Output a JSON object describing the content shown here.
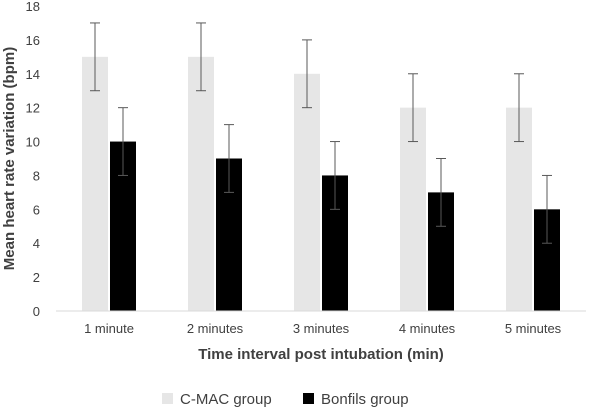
{
  "chart_data": {
    "type": "bar",
    "xlabel": "Time interval post intubation (min)",
    "ylabel": "Mean heart rate  variation (bpm)",
    "ylim": [
      0,
      18
    ],
    "yticks": [
      0,
      2,
      4,
      6,
      8,
      10,
      12,
      14,
      16,
      18
    ],
    "categories": [
      "1 minute",
      "2 minutes",
      "3 minutes",
      "4 minutes",
      "5 minutes"
    ],
    "series": [
      {
        "name": "C-MAC group",
        "values": [
          15,
          15,
          14,
          12,
          12
        ],
        "error": [
          2,
          2,
          2,
          2,
          2
        ],
        "color": "#e6e6e6"
      },
      {
        "name": "Bonfils group",
        "values": [
          10,
          9,
          8,
          7,
          6
        ],
        "error": [
          2,
          2,
          2,
          2,
          2
        ],
        "color": "#000000"
      }
    ],
    "legend_position": "bottom",
    "grid": false,
    "error_bars": true
  }
}
